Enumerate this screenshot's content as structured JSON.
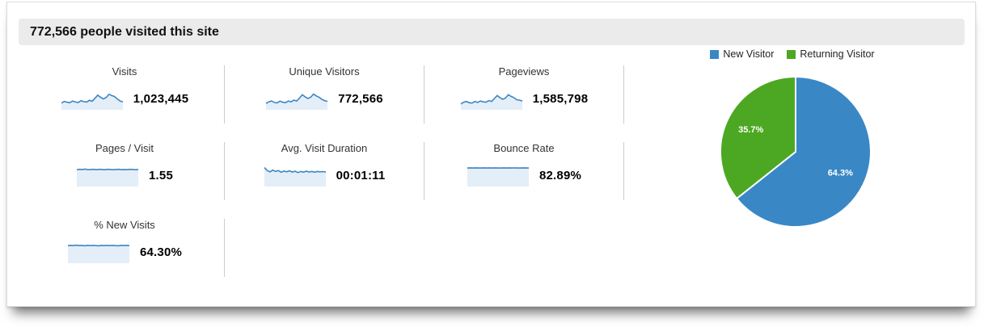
{
  "header": {
    "title": "772,566 people visited this site"
  },
  "metrics": [
    {
      "label": "Visits",
      "value": "1,023,445",
      "spark": [
        0.32,
        0.4,
        0.36,
        0.34,
        0.42,
        0.37,
        0.35,
        0.43,
        0.39,
        0.37,
        0.45,
        0.41,
        0.55,
        0.7,
        0.6,
        0.52,
        0.58,
        0.74,
        0.68,
        0.63,
        0.52,
        0.42,
        0.38
      ]
    },
    {
      "label": "Unique Visitors",
      "value": "772,566",
      "spark": [
        0.3,
        0.38,
        0.42,
        0.35,
        0.33,
        0.41,
        0.36,
        0.34,
        0.42,
        0.38,
        0.46,
        0.42,
        0.56,
        0.72,
        0.62,
        0.54,
        0.6,
        0.75,
        0.66,
        0.6,
        0.5,
        0.44,
        0.4
      ]
    },
    {
      "label": "Pageviews",
      "value": "1,585,798",
      "spark": [
        0.28,
        0.36,
        0.4,
        0.34,
        0.32,
        0.4,
        0.35,
        0.42,
        0.38,
        0.36,
        0.44,
        0.4,
        0.54,
        0.68,
        0.58,
        0.5,
        0.56,
        0.72,
        0.64,
        0.58,
        0.48,
        0.46,
        0.42
      ]
    },
    {
      "label": "Pages / Visit",
      "value": "1.55",
      "spark": [
        0.8,
        0.82,
        0.81,
        0.83,
        0.8,
        0.81,
        0.82,
        0.8,
        0.82,
        0.81,
        0.8,
        0.82,
        0.81,
        0.8,
        0.81,
        0.82,
        0.8,
        0.81,
        0.8,
        0.82,
        0.81,
        0.8,
        0.81
      ]
    },
    {
      "label": "Avg. Visit Duration",
      "value": "00:01:11",
      "spark": [
        0.9,
        0.76,
        0.7,
        0.78,
        0.72,
        0.76,
        0.68,
        0.74,
        0.7,
        0.75,
        0.69,
        0.73,
        0.66,
        0.72,
        0.68,
        0.73,
        0.69,
        0.72,
        0.68,
        0.72,
        0.7,
        0.71,
        0.69
      ]
    },
    {
      "label": "Bounce Rate",
      "value": "82.89%",
      "spark": [
        0.88,
        0.89,
        0.88,
        0.89,
        0.88,
        0.88,
        0.89,
        0.88,
        0.89,
        0.88,
        0.89,
        0.88,
        0.88,
        0.89,
        0.88,
        0.89,
        0.88,
        0.89,
        0.88,
        0.88,
        0.89,
        0.88,
        0.88
      ]
    },
    {
      "label": "% New Visits",
      "value": "64.30%",
      "spark": [
        0.84,
        0.85,
        0.84,
        0.86,
        0.84,
        0.85,
        0.83,
        0.85,
        0.84,
        0.85,
        0.84,
        0.83,
        0.85,
        0.84,
        0.85,
        0.84,
        0.85,
        0.84,
        0.83,
        0.85,
        0.84,
        0.85,
        0.84
      ]
    }
  ],
  "chart_data": {
    "type": "pie",
    "title": "",
    "labels": [
      "New Visitor",
      "Returning Visitor"
    ],
    "values": [
      64.3,
      35.7
    ],
    "slice_labels": [
      "64.3%",
      "35.7%"
    ],
    "colors": [
      "#3a87c6",
      "#4ca822"
    ],
    "legend_position": "top",
    "start_angle_deg": 0,
    "direction": "clockwise"
  },
  "colors": {
    "spark_line": "#3e86c0",
    "spark_fill": "#e4eef9",
    "header_bg": "#ebebeb",
    "divider": "#cccccc"
  }
}
